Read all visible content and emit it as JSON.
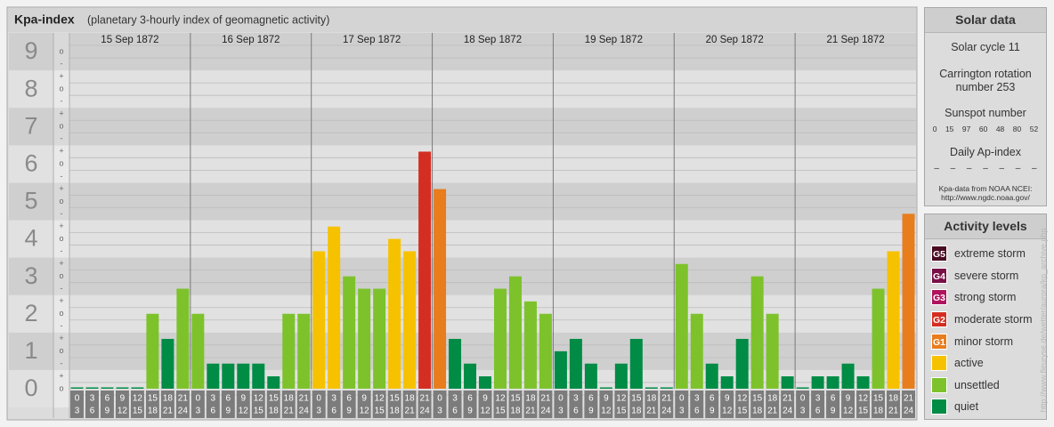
{
  "chart_data": {
    "type": "bar",
    "title": "Kpa-index",
    "subtitle": "(planetary 3-hourly index of geomagnetic activity)",
    "categories": [
      "15 Sep 1872",
      "16 Sep 1872",
      "17 Sep 1872",
      "18 Sep 1872",
      "19 Sep 1872",
      "20 Sep 1872",
      "21 Sep 1872"
    ],
    "hour_ticks": [
      0,
      3,
      6,
      9,
      12,
      15,
      18,
      21,
      24
    ],
    "days": [
      {
        "values": [
          0,
          0,
          0,
          0,
          0,
          2,
          1.33,
          2.67
        ],
        "colors": [
          "#008c45",
          "#008c45",
          "#008c45",
          "#008c45",
          "#008c45",
          "#7dc22b",
          "#008c45",
          "#7dc22b"
        ]
      },
      {
        "values": [
          2,
          0.67,
          0.67,
          0.67,
          0.67,
          0.33,
          2,
          2
        ],
        "colors": [
          "#7dc22b",
          "#008c45",
          "#008c45",
          "#008c45",
          "#008c45",
          "#008c45",
          "#7dc22b",
          "#7dc22b"
        ]
      },
      {
        "values": [
          3.67,
          4.33,
          3,
          2.67,
          2.67,
          4,
          3.67,
          6.33
        ],
        "colors": [
          "#f6c200",
          "#f6c200",
          "#7dc22b",
          "#7dc22b",
          "#7dc22b",
          "#f6c200",
          "#f6c200",
          "#d42e22"
        ]
      },
      {
        "values": [
          5.33,
          1.33,
          0.67,
          0.33,
          2.67,
          3,
          2.33,
          2
        ],
        "colors": [
          "#e87d1e",
          "#008c45",
          "#008c45",
          "#008c45",
          "#7dc22b",
          "#7dc22b",
          "#7dc22b",
          "#7dc22b"
        ]
      },
      {
        "values": [
          1,
          1.33,
          0.67,
          0,
          0.67,
          1.33,
          0,
          0
        ],
        "colors": [
          "#008c45",
          "#008c45",
          "#008c45",
          "#008c45",
          "#008c45",
          "#008c45",
          "#008c45",
          "#008c45"
        ]
      },
      {
        "values": [
          3.33,
          2,
          0.67,
          0.33,
          1.33,
          3,
          2,
          0.33
        ],
        "colors": [
          "#7dc22b",
          "#7dc22b",
          "#008c45",
          "#008c45",
          "#008c45",
          "#7dc22b",
          "#7dc22b",
          "#008c45"
        ]
      },
      {
        "values": [
          0,
          0.33,
          0.33,
          0.67,
          0.33,
          2.67,
          3.67,
          4.67
        ],
        "colors": [
          "#008c45",
          "#008c45",
          "#008c45",
          "#008c45",
          "#008c45",
          "#7dc22b",
          "#f6c200",
          "#e87d1e"
        ]
      }
    ],
    "ylim": [
      -0.5,
      9.5
    ],
    "yticks": [
      0,
      1,
      2,
      3,
      4,
      5,
      6,
      7,
      8,
      9
    ],
    "minor_labels": [
      "-",
      "o",
      "+"
    ],
    "grid": true
  },
  "solar_data": {
    "title": "Solar data",
    "cycle": "Solar cycle 11",
    "carrington": "Carrington rotation number 253",
    "sunspot_title": "Sunspot number",
    "sunspot_numbers": [
      0,
      15,
      97,
      60,
      48,
      80,
      52
    ],
    "ap_title": "Daily Ap-index",
    "ap_values": [
      "–",
      "–",
      "–",
      "–",
      "–",
      "–",
      "–"
    ],
    "source": "Kpa-data from NOAA NCEI:",
    "source_url": "http://www.ngdc.noaa.gov/"
  },
  "activity_levels": {
    "title": "Activity levels",
    "items": [
      {
        "code": "G5",
        "label": "extreme storm",
        "color": "#4a0a22"
      },
      {
        "code": "G4",
        "label": "severe storm",
        "color": "#7a1048"
      },
      {
        "code": "G3",
        "label": "strong storm",
        "color": "#b0145e"
      },
      {
        "code": "G2",
        "label": "moderate storm",
        "color": "#d42e22"
      },
      {
        "code": "G1",
        "label": "minor storm",
        "color": "#e87d1e"
      },
      {
        "label": "active",
        "color": "#f6c200"
      },
      {
        "label": "unsettled",
        "color": "#7dc22b"
      },
      {
        "label": "quiet",
        "color": "#008c45"
      }
    ]
  },
  "watermark": "http://www.fleuryse.de/wetter/aurora/kp_archive.php"
}
